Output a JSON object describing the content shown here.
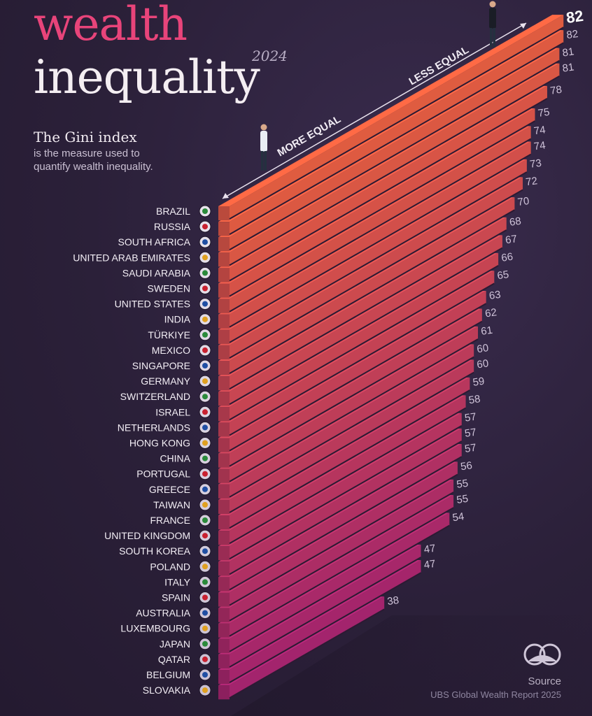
{
  "header": {
    "title_line1": "wealth",
    "title_line2": "inequality",
    "year": "2024",
    "gini_title": "The Gini index",
    "gini_description": "is the measure used to quantify wealth inequality."
  },
  "footer": {
    "source_label": "Source",
    "source_text": "UBS Global Wealth Report 2025"
  },
  "colors": {
    "background": "#2b2039",
    "bar_top": "#ff6a45",
    "bar_bottom": "#b8287a",
    "title_accent": "#e8447a"
  },
  "chart_data": {
    "type": "bar",
    "orientation": "horizontal",
    "title": "wealth inequality",
    "scale_labels": [
      "MORE EQUAL",
      "LESS EQUAL"
    ],
    "categories": [
      "BRAZIL",
      "RUSSIA",
      "SOUTH AFRICA",
      "UNITED ARAB EMIRATES",
      "SAUDI ARABIA",
      "SWEDEN",
      "UNITED STATES",
      "INDIA",
      "TÜRKIYE",
      "MEXICO",
      "SINGAPORE",
      "GERMANY",
      "SWITZERLAND",
      "ISRAEL",
      "NETHERLANDS",
      "HONG KONG",
      "CHINA",
      "PORTUGAL",
      "GREECE",
      "TAIWAN",
      "FRANCE",
      "UNITED KINGDOM",
      "SOUTH KOREA",
      "POLAND",
      "ITALY",
      "SPAIN",
      "AUSTRALIA",
      "LUXEMBOURG",
      "JAPAN",
      "QATAR",
      "BELGIUM",
      "SLOVAKIA"
    ],
    "values": [
      82,
      82,
      81,
      81,
      78,
      75,
      74,
      74,
      73,
      72,
      70,
      68,
      67,
      66,
      65,
      63,
      62,
      61,
      60,
      60,
      59,
      58,
      57,
      57,
      57,
      56,
      55,
      55,
      54,
      47,
      47,
      38
    ],
    "flags": [
      "brazil-flag-icon",
      "russia-flag-icon",
      "south-africa-flag-icon",
      "uae-flag-icon",
      "saudi-arabia-flag-icon",
      "sweden-flag-icon",
      "united-states-flag-icon",
      "india-flag-icon",
      "turkiye-flag-icon",
      "mexico-flag-icon",
      "singapore-flag-icon",
      "germany-flag-icon",
      "switzerland-flag-icon",
      "israel-flag-icon",
      "netherlands-flag-icon",
      "hong-kong-flag-icon",
      "china-flag-icon",
      "portugal-flag-icon",
      "greece-flag-icon",
      "taiwan-flag-icon",
      "france-flag-icon",
      "united-kingdom-flag-icon",
      "south-korea-flag-icon",
      "poland-flag-icon",
      "italy-flag-icon",
      "spain-flag-icon",
      "australia-flag-icon",
      "luxembourg-flag-icon",
      "japan-flag-icon",
      "qatar-flag-icon",
      "belgium-flag-icon",
      "slovakia-flag-icon"
    ],
    "data_labels": true,
    "grid": false,
    "legend": "none"
  }
}
